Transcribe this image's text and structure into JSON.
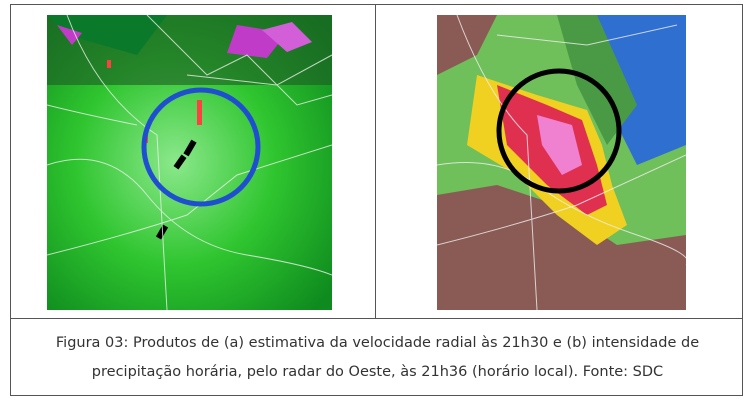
{
  "caption": "Figura 03: Produtos de (a) estimativa da velocidade radial às 21h30 e (b) intensidade de precipitação horária, pelo radar do Oeste, às 21h36 (horário local). Fonte: SDC"
}
